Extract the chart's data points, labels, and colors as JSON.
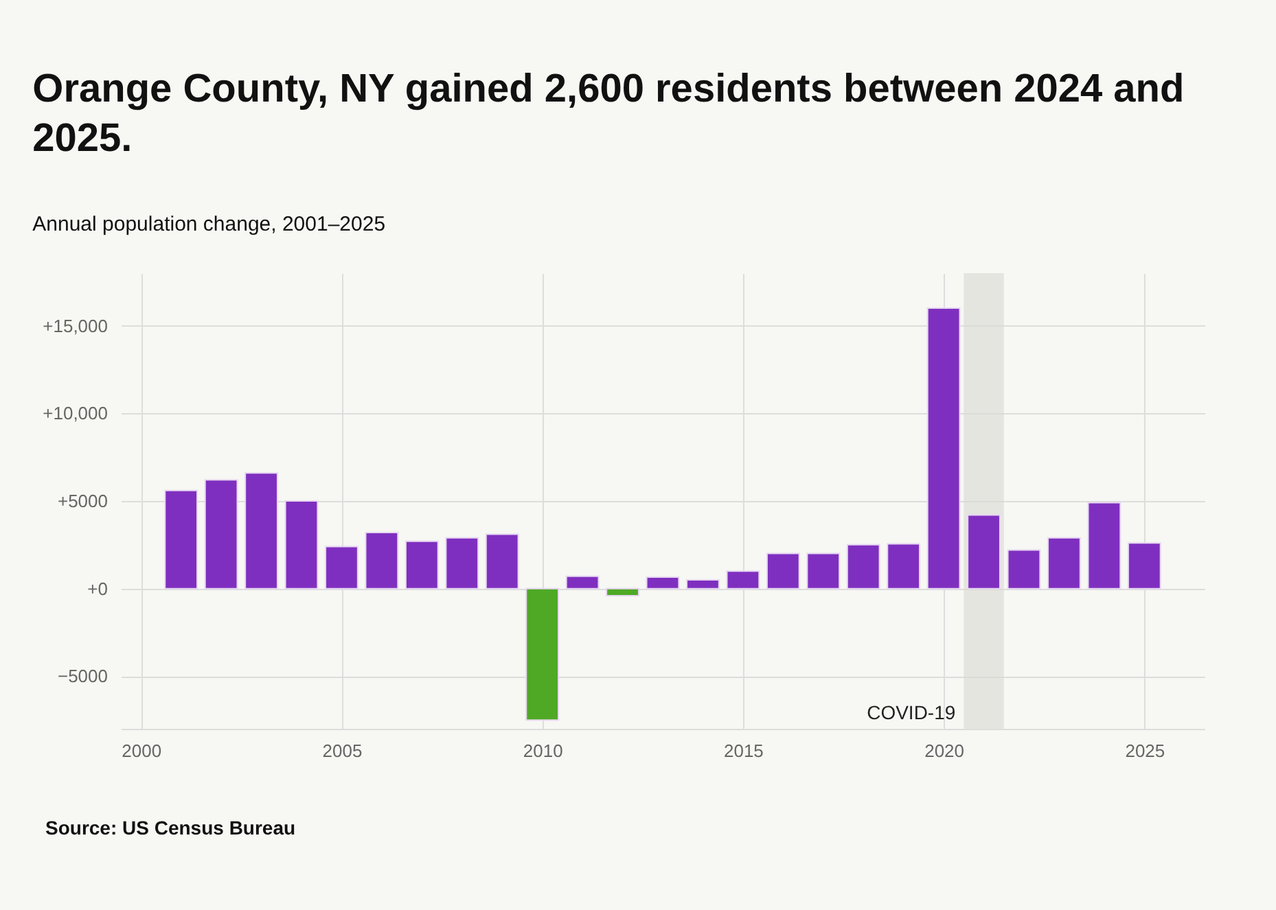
{
  "chart_data": {
    "type": "bar",
    "title": "Orange County, NY gained 2,600 residents between 2024 and 2025.",
    "subtitle": "Annual population change, 2001–2025",
    "x": [
      2001,
      2002,
      2003,
      2004,
      2005,
      2006,
      2007,
      2008,
      2009,
      2010,
      2011,
      2012,
      2013,
      2014,
      2015,
      2016,
      2017,
      2018,
      2019,
      2020,
      2021,
      2022,
      2023,
      2024,
      2025
    ],
    "values": [
      5600,
      6200,
      6600,
      5000,
      2400,
      3200,
      2700,
      2900,
      3100,
      -7500,
      700,
      -400,
      650,
      500,
      1000,
      2000,
      2000,
      2500,
      2550,
      16000,
      4200,
      2200,
      2900,
      4900,
      2600
    ],
    "colors": [
      "#7f2fbf",
      "#7f2fbf",
      "#7f2fbf",
      "#7f2fbf",
      "#7f2fbf",
      "#7f2fbf",
      "#7f2fbf",
      "#7f2fbf",
      "#7f2fbf",
      "#4fa925",
      "#7f2fbf",
      "#4fa925",
      "#7f2fbf",
      "#7f2fbf",
      "#7f2fbf",
      "#7f2fbf",
      "#7f2fbf",
      "#7f2fbf",
      "#7f2fbf",
      "#7f2fbf",
      "#7f2fbf",
      "#7f2fbf",
      "#7f2fbf",
      "#7f2fbf",
      "#7f2fbf"
    ],
    "xlim": [
      1999.5,
      2026.5
    ],
    "xticks": [
      2000,
      2005,
      2010,
      2015,
      2020,
      2025
    ],
    "ylim": [
      -8000,
      18000
    ],
    "yticks": [
      {
        "value": -5000,
        "label": "−5000"
      },
      {
        "value": 0,
        "label": "+0"
      },
      {
        "value": 5000,
        "label": "+5000"
      },
      {
        "value": 10000,
        "label": "+10,000"
      },
      {
        "value": 15000,
        "label": "+15,000"
      }
    ],
    "bands": [
      {
        "axis": "x",
        "from": 2020.5,
        "to": 2021.5,
        "label": "COVID-19",
        "color": "#d8d8d4"
      }
    ],
    "annotations": [
      "Source: US Census Bureau"
    ],
    "grid": true
  }
}
